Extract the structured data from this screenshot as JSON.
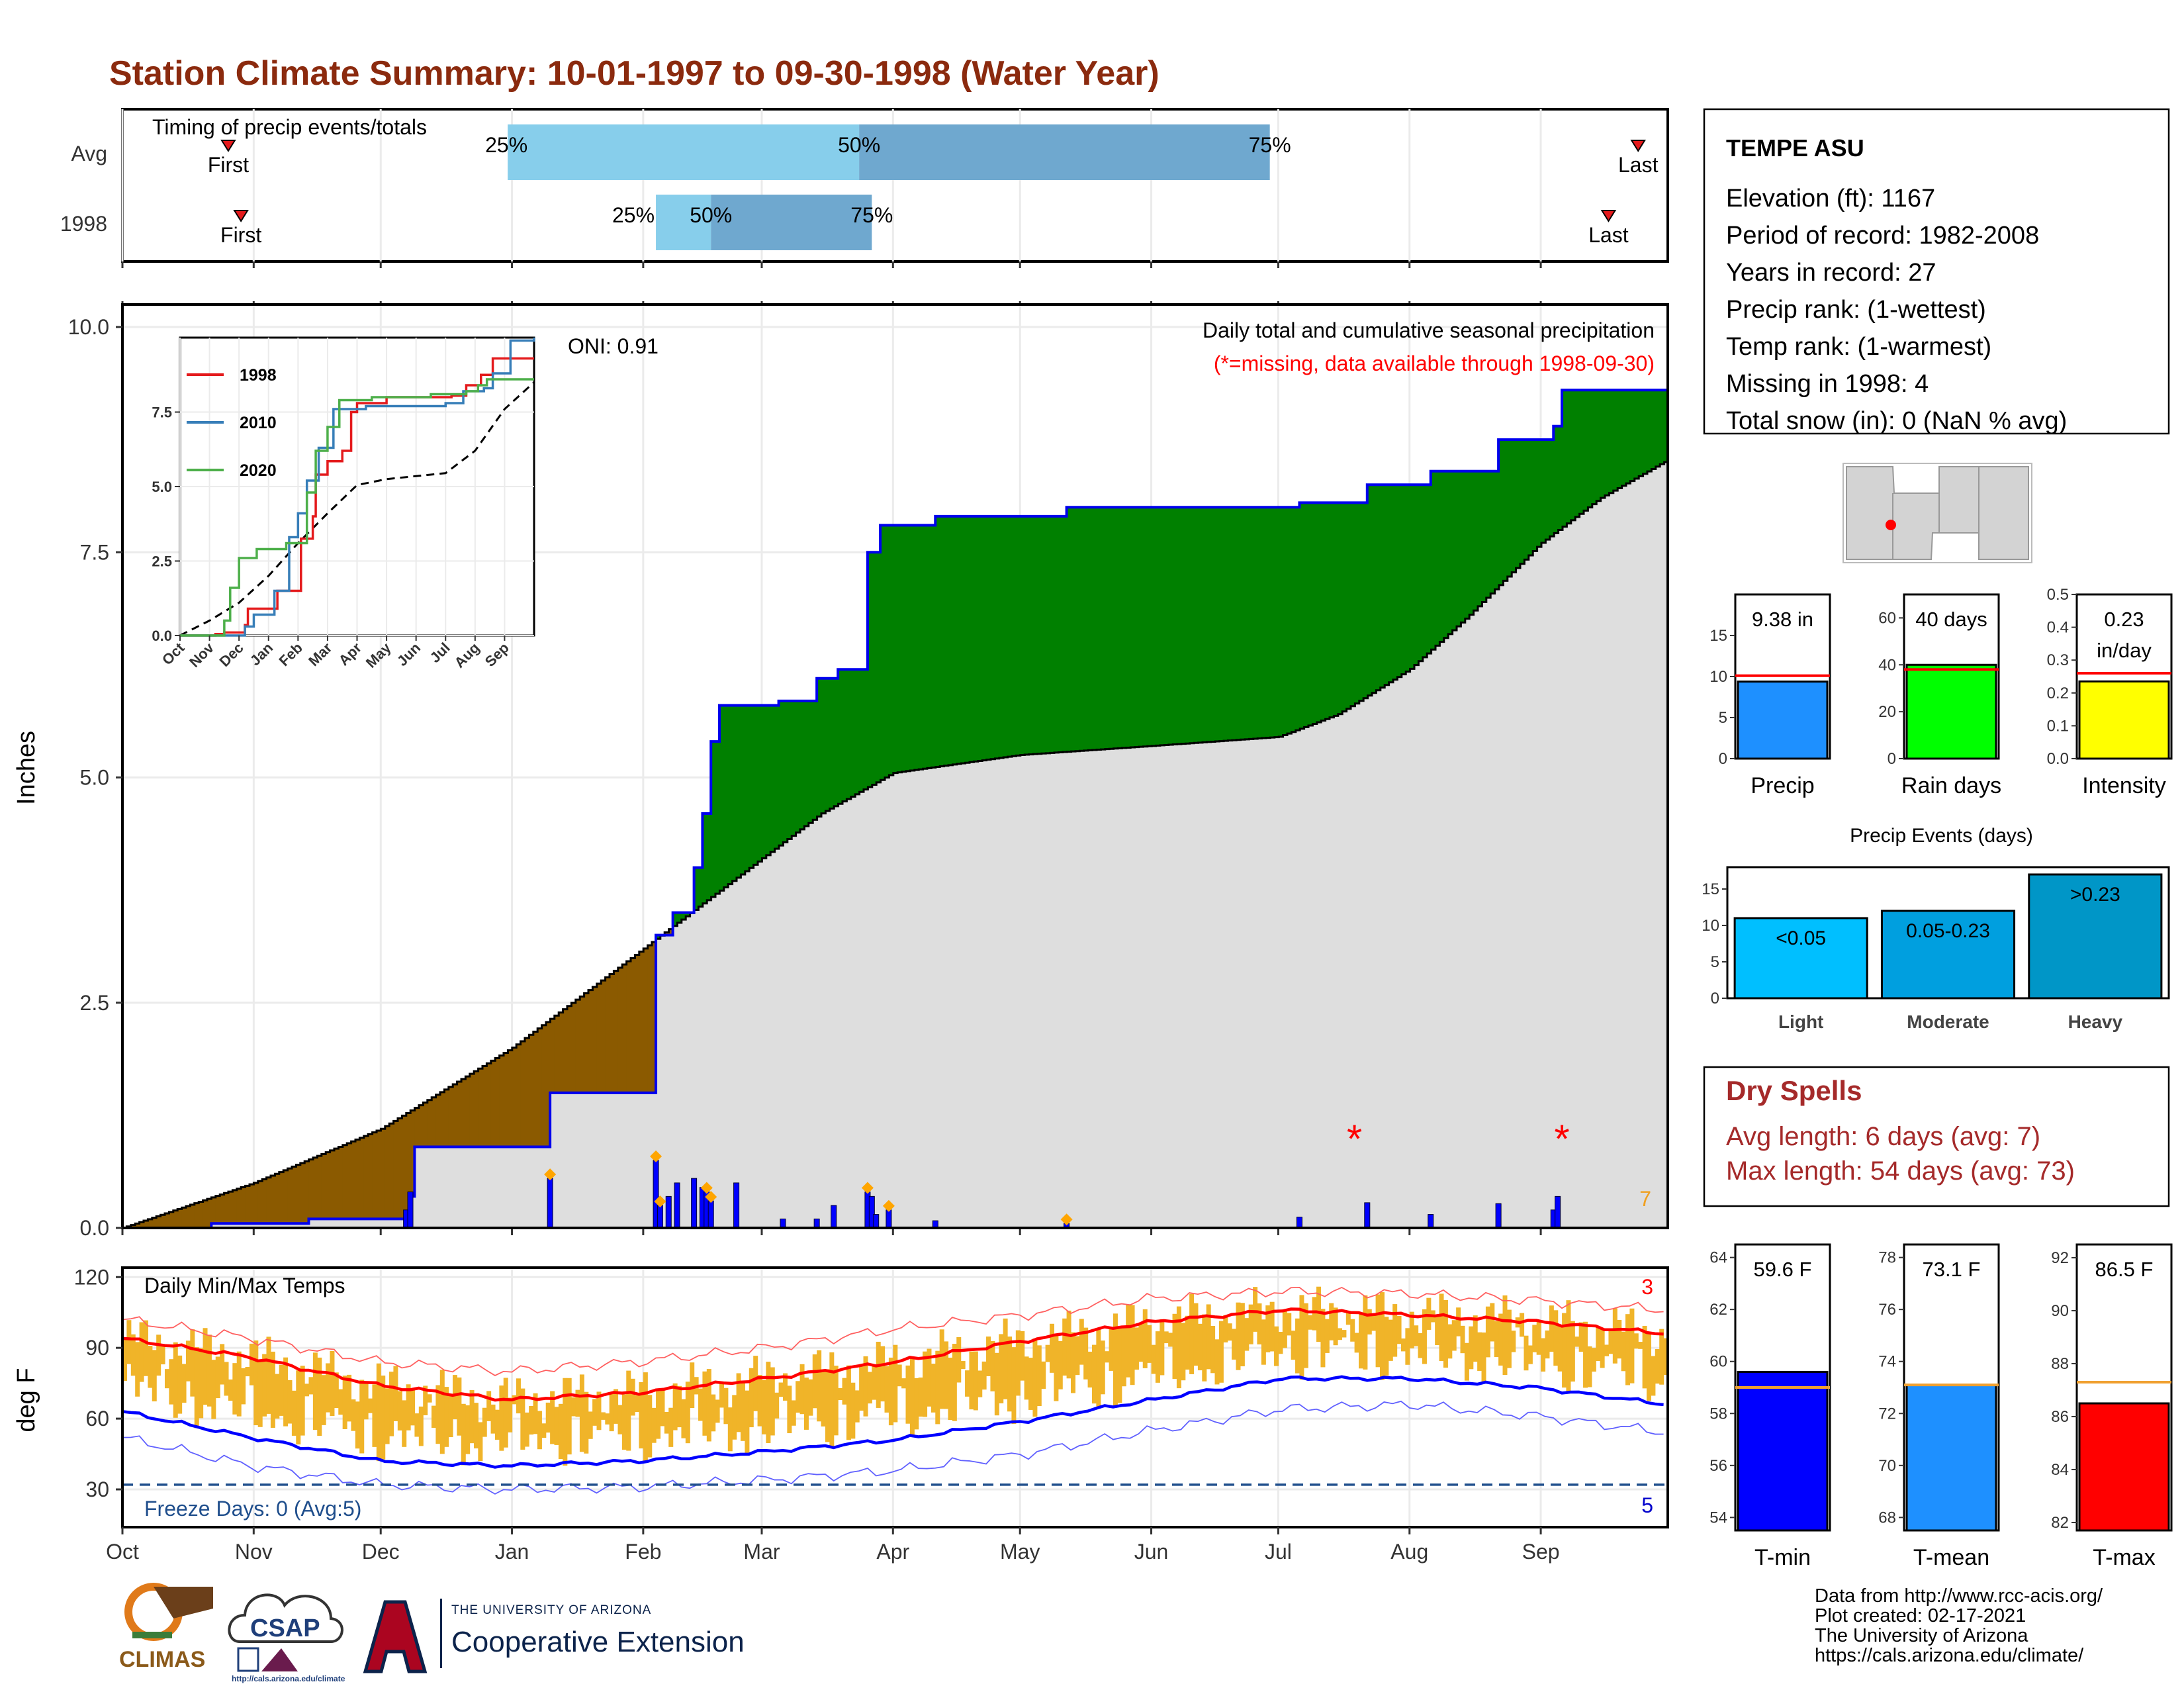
{
  "title": "Station Climate Summary: 10-01-1997 to 09-30-1998 (Water Year)",
  "colors": {
    "title": "#8b2a0e",
    "precip_green": "#008000",
    "precip_brown": "#8b5a00",
    "avg_grey": "#dedede",
    "cum_blue": "#0000ee",
    "temp_bar": "#f0b429",
    "red": "#ff0000",
    "blue": "#0000ff",
    "dry_red": "#a52a2a"
  },
  "timing_panel": {
    "label": "Timing of precip events/totals",
    "rows": [
      {
        "label": "Avg",
        "first_label": "First",
        "last_label": "Last",
        "first_date": "1997-10-26",
        "last_date": "1998-09-24",
        "p25_date": "1997-12-31",
        "p50_date": "1998-03-24",
        "p75_date": "1998-06-29",
        "p25_label": "25%",
        "p50_label": "50%",
        "p75_label": "75%"
      },
      {
        "label": "1998",
        "first_label": "First",
        "last_label": "Last",
        "first_date": "1997-10-29",
        "last_date": "1998-09-17",
        "p25_date": "1998-02-04",
        "p50_date": "1998-02-17",
        "p75_date": "1998-03-27",
        "p25_label": "25%",
        "p50_label": "50%",
        "p75_label": "75%"
      }
    ]
  },
  "precip_panel": {
    "annotation_oni": "ONI: 0.91",
    "subtitle": "Daily total and cumulative seasonal precipitation",
    "missing_note": "(*=missing, data available through 1998-09-30)",
    "ylabel": "Inches",
    "y_ticks": [
      "0.0",
      "2.5",
      "5.0",
      "7.5",
      "10.0"
    ],
    "corner_count": "7",
    "missing_dates": [
      "1998-07-19",
      "1998-09-06"
    ],
    "cumulative_observed": [
      [
        "1997-10-01",
        0.0
      ],
      [
        "1997-10-22",
        0.05
      ],
      [
        "1997-11-14",
        0.1
      ],
      [
        "1997-12-08",
        0.35
      ],
      [
        "1997-12-09",
        0.9
      ],
      [
        "1998-01-10",
        1.5
      ],
      [
        "1998-02-04",
        3.25
      ],
      [
        "1998-02-08",
        3.5
      ],
      [
        "1998-02-13",
        4.0
      ],
      [
        "1998-02-15",
        4.6
      ],
      [
        "1998-02-17",
        5.4
      ],
      [
        "1998-02-19",
        5.8
      ],
      [
        "1998-03-05",
        5.85
      ],
      [
        "1998-03-14",
        6.1
      ],
      [
        "1998-03-19",
        6.2
      ],
      [
        "1998-03-26",
        7.5
      ],
      [
        "1998-03-29",
        7.8
      ],
      [
        "1998-04-01",
        7.8
      ],
      [
        "1998-04-11",
        7.9
      ],
      [
        "1998-05-12",
        8.0
      ],
      [
        "1998-07-06",
        8.05
      ],
      [
        "1998-07-22",
        8.25
      ],
      [
        "1998-08-06",
        8.4
      ],
      [
        "1998-08-22",
        8.75
      ],
      [
        "1998-09-04",
        8.9
      ],
      [
        "1998-09-06",
        9.3
      ],
      [
        "1998-09-30",
        9.3
      ]
    ],
    "cumulative_average": [
      [
        "1997-10-01",
        0.0
      ],
      [
        "1997-11-01",
        0.5
      ],
      [
        "1997-12-01",
        1.1
      ],
      [
        "1998-01-01",
        2.0
      ],
      [
        "1998-02-01",
        3.1
      ],
      [
        "1998-02-15",
        3.6
      ],
      [
        "1998-03-01",
        4.1
      ],
      [
        "1998-03-15",
        4.6
      ],
      [
        "1998-04-01",
        5.05
      ],
      [
        "1998-05-01",
        5.25
      ],
      [
        "1998-06-01",
        5.35
      ],
      [
        "1998-07-01",
        5.45
      ],
      [
        "1998-07-15",
        5.7
      ],
      [
        "1998-08-01",
        6.2
      ],
      [
        "1998-08-15",
        6.8
      ],
      [
        "1998-09-01",
        7.6
      ],
      [
        "1998-09-15",
        8.1
      ],
      [
        "1998-09-30",
        8.5
      ]
    ],
    "daily_bars": [
      [
        "1997-12-07",
        0.2
      ],
      [
        "1997-12-08",
        0.4
      ],
      [
        "1998-01-10",
        0.55
      ],
      [
        "1998-02-04",
        0.75
      ],
      [
        "1998-02-05",
        0.25
      ],
      [
        "1998-02-07",
        0.35
      ],
      [
        "1998-02-09",
        0.5
      ],
      [
        "1998-02-13",
        0.55
      ],
      [
        "1998-02-15",
        0.45
      ],
      [
        "1998-02-16",
        0.4
      ],
      [
        "1998-02-17",
        0.3
      ],
      [
        "1998-02-23",
        0.5
      ],
      [
        "1998-03-06",
        0.1
      ],
      [
        "1998-03-14",
        0.1
      ],
      [
        "1998-03-18",
        0.25
      ],
      [
        "1998-03-26",
        0.4
      ],
      [
        "1998-03-27",
        0.35
      ],
      [
        "1998-03-28",
        0.15
      ],
      [
        "1998-03-31",
        0.2
      ],
      [
        "1998-04-11",
        0.08
      ],
      [
        "1998-05-12",
        0.05
      ],
      [
        "1998-07-06",
        0.12
      ],
      [
        "1998-07-22",
        0.28
      ],
      [
        "1998-08-06",
        0.15
      ],
      [
        "1998-08-22",
        0.27
      ],
      [
        "1998-09-04",
        0.2
      ],
      [
        "1998-09-05",
        0.35
      ]
    ],
    "marker_dates": [
      "1998-01-10",
      "1998-02-04",
      "1998-02-05",
      "1998-02-17",
      "1998-02-16",
      "1998-03-26",
      "1998-03-31",
      "1998-05-12"
    ]
  },
  "inset": {
    "y_ticks": [
      "0.0",
      "2.5",
      "5.0",
      "7.5"
    ],
    "x_ticks": [
      "Oct",
      "Nov",
      "Dec",
      "Jan",
      "Feb",
      "Mar",
      "Apr",
      "May",
      "Jun",
      "Jul",
      "Aug",
      "Sep"
    ],
    "legend": [
      {
        "name": "1998",
        "color": "#e41a1c"
      },
      {
        "name": "2010",
        "color": "#377eb8"
      },
      {
        "name": "2020",
        "color": "#4daf4a"
      }
    ],
    "series": {
      "1998": [
        [
          0,
          0.0
        ],
        [
          1.2,
          0.05
        ],
        [
          1.5,
          0.1
        ],
        [
          2.2,
          0.35
        ],
        [
          2.3,
          0.9
        ],
        [
          3.3,
          1.5
        ],
        [
          4.1,
          3.25
        ],
        [
          4.5,
          4.0
        ],
        [
          4.6,
          5.4
        ],
        [
          5.0,
          5.85
        ],
        [
          5.5,
          6.2
        ],
        [
          5.8,
          7.5
        ],
        [
          6.0,
          7.8
        ],
        [
          7.0,
          8.0
        ],
        [
          9.2,
          8.05
        ],
        [
          9.7,
          8.4
        ],
        [
          10.2,
          8.75
        ],
        [
          10.6,
          9.3
        ],
        [
          12,
          9.3
        ]
      ],
      "2010": [
        [
          0,
          0.0
        ],
        [
          2.2,
          0.3
        ],
        [
          2.5,
          0.7
        ],
        [
          3.2,
          1.5
        ],
        [
          3.7,
          3.3
        ],
        [
          4.0,
          4.1
        ],
        [
          4.3,
          5.2
        ],
        [
          4.7,
          6.3
        ],
        [
          5.2,
          7.6
        ],
        [
          6.3,
          7.7
        ],
        [
          9.0,
          7.8
        ],
        [
          9.6,
          8.2
        ],
        [
          10.3,
          8.3
        ],
        [
          10.6,
          8.8
        ],
        [
          11.2,
          9.9
        ],
        [
          12,
          10.0
        ]
      ],
      "2020": [
        [
          0,
          0.0
        ],
        [
          1.5,
          0.5
        ],
        [
          1.7,
          1.6
        ],
        [
          2.0,
          2.6
        ],
        [
          2.6,
          2.9
        ],
        [
          3.6,
          3.1
        ],
        [
          4.3,
          4.8
        ],
        [
          4.6,
          6.2
        ],
        [
          5.0,
          7.0
        ],
        [
          5.4,
          7.9
        ],
        [
          6.5,
          8.0
        ],
        [
          8.5,
          8.1
        ],
        [
          9.7,
          8.2
        ],
        [
          10.1,
          8.4
        ],
        [
          10.4,
          8.6
        ],
        [
          12,
          8.6
        ]
      ]
    },
    "average": [
      [
        0,
        0.0
      ],
      [
        1,
        0.5
      ],
      [
        2,
        1.1
      ],
      [
        3,
        2.0
      ],
      [
        4,
        3.1
      ],
      [
        5,
        4.1
      ],
      [
        6,
        5.05
      ],
      [
        7,
        5.25
      ],
      [
        8,
        5.35
      ],
      [
        9,
        5.45
      ],
      [
        10,
        6.2
      ],
      [
        11,
        7.6
      ],
      [
        12,
        8.5
      ]
    ],
    "ymax": 10.0
  },
  "temp_panel": {
    "label": "Daily Min/Max Temps",
    "ylabel": "deg F",
    "y_ticks": [
      "30",
      "60",
      "90",
      "120"
    ],
    "freeze_label": "Freeze Days: 0 (Avg:5)",
    "freeze_line": 32,
    "count_top": "3",
    "count_bottom": "5",
    "x_ticks": [
      "Oct",
      "Nov",
      "Dec",
      "Jan",
      "Feb",
      "Mar",
      "Apr",
      "May",
      "Jun",
      "Jul",
      "Aug",
      "Sep"
    ],
    "avg_max": [
      [
        0,
        94
      ],
      [
        1,
        86
      ],
      [
        2,
        74
      ],
      [
        3,
        68
      ],
      [
        4,
        71
      ],
      [
        5,
        77
      ],
      [
        6,
        84
      ],
      [
        7,
        93
      ],
      [
        8,
        101
      ],
      [
        9,
        106
      ],
      [
        10,
        104
      ],
      [
        11,
        101
      ],
      [
        12,
        96
      ]
    ],
    "avg_min": [
      [
        0,
        63
      ],
      [
        1,
        52
      ],
      [
        2,
        42
      ],
      [
        3,
        40
      ],
      [
        4,
        42
      ],
      [
        5,
        46
      ],
      [
        6,
        51
      ],
      [
        7,
        59
      ],
      [
        8,
        68
      ],
      [
        9,
        77
      ],
      [
        10,
        77
      ],
      [
        11,
        73
      ],
      [
        12,
        66
      ]
    ],
    "rec_max": [
      [
        0,
        102
      ],
      [
        1,
        94
      ],
      [
        2,
        84
      ],
      [
        3,
        80
      ],
      [
        4,
        84
      ],
      [
        5,
        90
      ],
      [
        6,
        98
      ],
      [
        7,
        104
      ],
      [
        8,
        111
      ],
      [
        9,
        114
      ],
      [
        10,
        113
      ],
      [
        11,
        110
      ],
      [
        12,
        106
      ]
    ],
    "rec_min": [
      [
        0,
        52
      ],
      [
        1,
        40
      ],
      [
        2,
        32
      ],
      [
        3,
        30
      ],
      [
        4,
        31
      ],
      [
        5,
        34
      ],
      [
        6,
        38
      ],
      [
        7,
        45
      ],
      [
        8,
        55
      ],
      [
        9,
        64
      ],
      [
        10,
        66
      ],
      [
        11,
        61
      ],
      [
        12,
        54
      ]
    ]
  },
  "station_box": {
    "name": "TEMPE ASU",
    "lines": [
      "Elevation (ft): 1167",
      "Period of record: 1982-2008",
      "Years in record: 27",
      "Precip rank:  (1-wettest)",
      "Temp rank:  (1-warmest)",
      "Missing in 1998: 4",
      "Total snow (in): 0 (NaN % avg)"
    ]
  },
  "mini_bars": [
    {
      "label": "Precip",
      "value_text": "9.38 in",
      "value": 9.38,
      "avg": 10.1,
      "ymin": 0,
      "ymax": 20,
      "ticks": [
        "0",
        "5",
        "10",
        "15"
      ],
      "tick_vals": [
        0,
        5,
        10,
        15
      ],
      "color": "#1e90ff"
    },
    {
      "label": "Rain days",
      "value_text": "40 days",
      "value": 40,
      "avg": 38,
      "ymin": 0,
      "ymax": 70,
      "ticks": [
        "0",
        "20",
        "40",
        "60"
      ],
      "tick_vals": [
        0,
        20,
        40,
        60
      ],
      "color": "#00ff00"
    },
    {
      "label": "Intensity",
      "value_text": "0.23 in/day",
      "value_text_1": "0.23",
      "value_text_2": "in/day",
      "value": 0.235,
      "avg": 0.26,
      "ymin": 0,
      "ymax": 0.5,
      "ticks": [
        "0.0",
        "0.1",
        "0.2",
        "0.3",
        "0.4",
        "0.5"
      ],
      "tick_vals": [
        0,
        0.1,
        0.2,
        0.3,
        0.4,
        0.5
      ],
      "color": "#ffff00"
    }
  ],
  "events": {
    "title": "Precip Events (days)",
    "ticks": [
      "0",
      "5",
      "10",
      "15"
    ],
    "bars": [
      {
        "label": "Light",
        "range": "<0.05",
        "value": 11,
        "color": "#00bfff"
      },
      {
        "label": "Moderate",
        "range": "0.05-0.23",
        "value": 12,
        "color": "#009fdf"
      },
      {
        "label": "Heavy",
        "range": ">0.23",
        "value": 17,
        "color": "#0096c7"
      }
    ]
  },
  "dry_spells": {
    "title": "Dry Spells",
    "avg_line": "Avg length: 6 days (avg: 7)",
    "max_line": "Max length: 54 days (avg: 73)"
  },
  "temp_bars": [
    {
      "label": "T-min",
      "value_text": "59.6 F",
      "value": 59.6,
      "avg": 59.0,
      "ymin": 53.5,
      "ymax": 64.5,
      "ticks": [
        "54",
        "56",
        "58",
        "60",
        "62",
        "64"
      ],
      "tick_vals": [
        54,
        56,
        58,
        60,
        62,
        64
      ],
      "color": "#0000ff"
    },
    {
      "label": "T-mean",
      "value_text": "73.1 F",
      "value": 73.1,
      "avg": 73.1,
      "ymin": 67.5,
      "ymax": 78.5,
      "ticks": [
        "68",
        "70",
        "72",
        "74",
        "76",
        "78"
      ],
      "tick_vals": [
        68,
        70,
        72,
        74,
        76,
        78
      ],
      "color": "#1e90ff"
    },
    {
      "label": "T-max",
      "value_text": "86.5 F",
      "value": 86.5,
      "avg": 87.3,
      "ymin": 81.7,
      "ymax": 92.5,
      "ticks": [
        "82",
        "84",
        "86",
        "88",
        "90",
        "92"
      ],
      "tick_vals": [
        82,
        84,
        86,
        88,
        90,
        92
      ],
      "color": "#ff0000"
    }
  ],
  "logos": {
    "climas": "CLIMAS",
    "csap": "CSAP",
    "csap_url": "http://cals.arizona.edu/climate",
    "ua_small": "THE UNIVERSITY OF ARIZONA",
    "coop": "Cooperative Extension"
  },
  "credits": [
    "Data from http://www.rcc-acis.org/",
    "Plot created: 02-17-2021",
    "The University of Arizona",
    "https://cals.arizona.edu/climate/"
  ]
}
